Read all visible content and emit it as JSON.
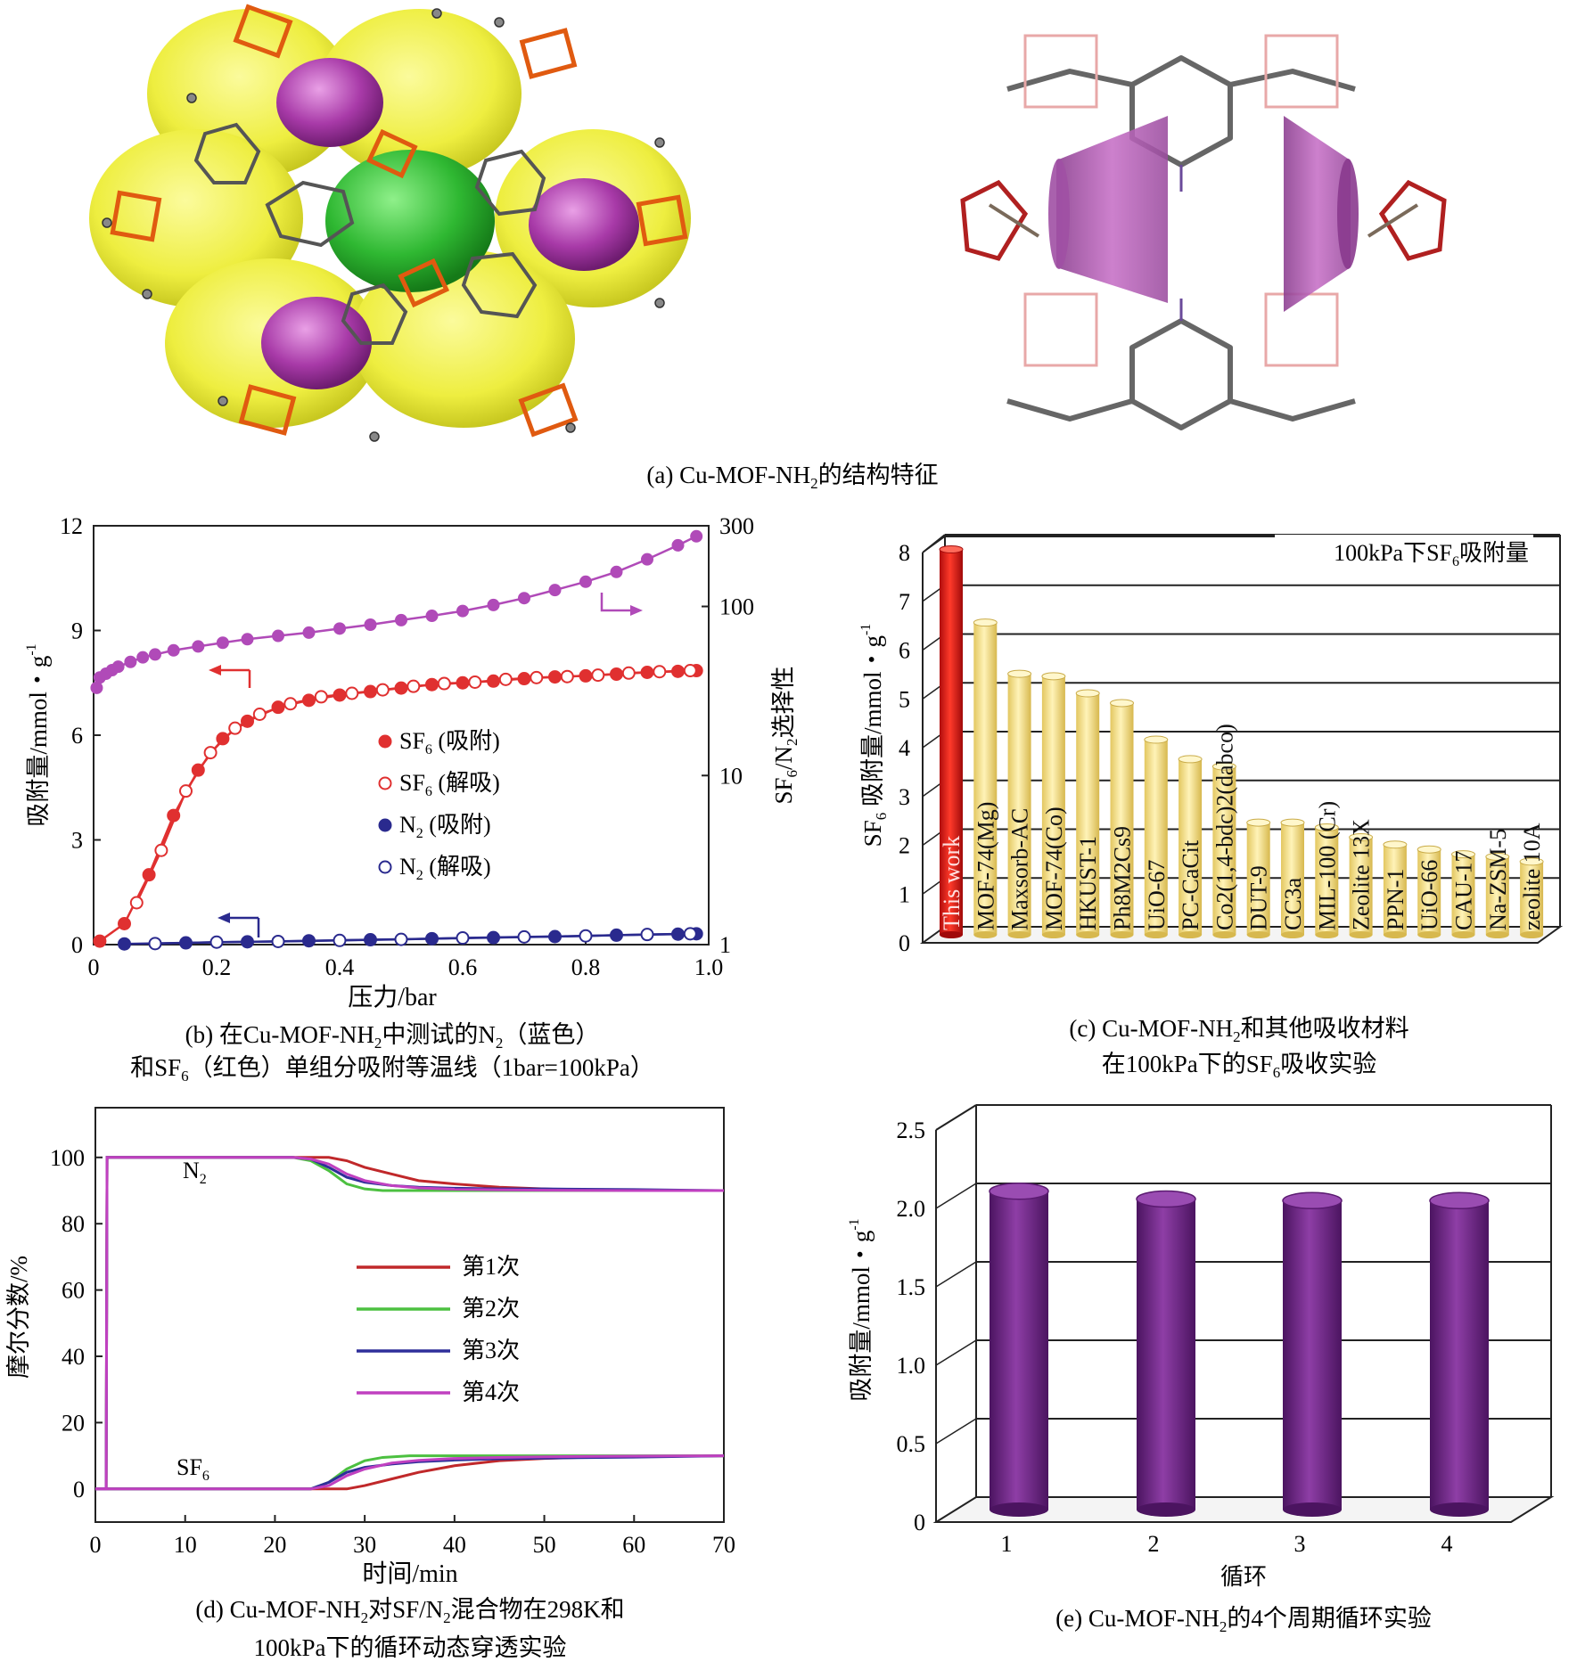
{
  "panel_a": {
    "caption": {
      "prefix": "(a) Cu-MOF-NH",
      "sub": "2",
      "suffix": "的结构特征"
    }
  },
  "chart_data": [
    {
      "id": "b",
      "type": "line",
      "caption_line1": {
        "prefix": "(b) 在Cu-MOF-NH",
        "sub1": "2",
        "mid": "中测试的N",
        "sub2": "2",
        "suffix": "（蓝色）"
      },
      "caption_line2": {
        "prefix": "和SF",
        "sub": "6",
        "suffix": "（红色）单组分吸附等温线（1bar=100kPa）"
      },
      "xlabel": "压力/bar",
      "ylabel": {
        "prefix": "吸附量/mmol・g",
        "sup": "-1"
      },
      "y2label": {
        "prefix": "SF",
        "sub1": "6",
        "mid": "/N",
        "sub2": "2",
        "suffix": "选择性"
      },
      "xlim": [
        0,
        1.0
      ],
      "ylim": [
        0,
        12
      ],
      "y2lim": [
        1,
        300
      ],
      "y2scale": "log",
      "xticks": [
        "0",
        "0.2",
        "0.4",
        "0.6",
        "0.8",
        "1.0"
      ],
      "yticks": [
        "0",
        "3",
        "6",
        "9",
        "12"
      ],
      "y2ticks": [
        "1",
        "10",
        "100",
        "300"
      ],
      "legend": [
        {
          "prefix": "SF",
          "sub": "6",
          "suffix": " (吸附)",
          "color": "#e03030",
          "filled": true
        },
        {
          "prefix": "SF",
          "sub": "6",
          "suffix": " (解吸)",
          "color": "#e03030",
          "filled": false
        },
        {
          "prefix": "N",
          "sub": "2",
          "suffix": " (吸附)",
          "color": "#2a2a8e",
          "filled": true
        },
        {
          "prefix": "N",
          "sub": "2",
          "suffix": " (解吸)",
          "color": "#2a2a8e",
          "filled": false
        }
      ],
      "series": [
        {
          "name": "SF6 (吸附)",
          "axis": "left",
          "color": "#e03030",
          "x": [
            0.01,
            0.05,
            0.09,
            0.13,
            0.17,
            0.21,
            0.25,
            0.3,
            0.35,
            0.4,
            0.45,
            0.5,
            0.55,
            0.6,
            0.65,
            0.7,
            0.75,
            0.8,
            0.85,
            0.9,
            0.95,
            0.98
          ],
          "y": [
            0.1,
            0.6,
            2.0,
            3.7,
            5.0,
            5.9,
            6.4,
            6.8,
            7.0,
            7.15,
            7.25,
            7.35,
            7.45,
            7.5,
            7.55,
            7.62,
            7.67,
            7.7,
            7.75,
            7.8,
            7.83,
            7.85
          ]
        },
        {
          "name": "SF6 (解吸)",
          "axis": "left",
          "color": "#e03030",
          "x": [
            0.07,
            0.11,
            0.15,
            0.19,
            0.23,
            0.27,
            0.32,
            0.37,
            0.42,
            0.47,
            0.52,
            0.57,
            0.62,
            0.67,
            0.72,
            0.77,
            0.82,
            0.87,
            0.92,
            0.97
          ],
          "y": [
            1.2,
            2.7,
            4.4,
            5.5,
            6.2,
            6.6,
            6.9,
            7.1,
            7.2,
            7.3,
            7.4,
            7.48,
            7.52,
            7.6,
            7.65,
            7.68,
            7.72,
            7.78,
            7.82,
            7.85
          ]
        },
        {
          "name": "N2 (吸附)",
          "axis": "left",
          "color": "#2a2a8e",
          "x": [
            0.05,
            0.15,
            0.25,
            0.35,
            0.45,
            0.55,
            0.65,
            0.75,
            0.85,
            0.95,
            0.98
          ],
          "y": [
            0.02,
            0.05,
            0.08,
            0.11,
            0.14,
            0.17,
            0.2,
            0.23,
            0.27,
            0.3,
            0.31
          ]
        },
        {
          "name": "N2 (解吸)",
          "axis": "left",
          "color": "#2a2a8e",
          "x": [
            0.1,
            0.2,
            0.3,
            0.4,
            0.5,
            0.6,
            0.7,
            0.8,
            0.9,
            0.97
          ],
          "y": [
            0.03,
            0.07,
            0.09,
            0.12,
            0.15,
            0.19,
            0.22,
            0.25,
            0.29,
            0.31
          ]
        },
        {
          "name": "SF6/N2选择性",
          "axis": "right",
          "color": "#b04ab8",
          "x": [
            0.005,
            0.01,
            0.02,
            0.03,
            0.04,
            0.06,
            0.08,
            0.1,
            0.13,
            0.17,
            0.21,
            0.25,
            0.3,
            0.35,
            0.4,
            0.45,
            0.5,
            0.55,
            0.6,
            0.65,
            0.7,
            0.75,
            0.8,
            0.85,
            0.9,
            0.95,
            0.98
          ],
          "y": [
            33,
            38,
            40,
            42,
            44,
            47,
            50,
            52,
            55,
            58,
            61,
            64,
            67,
            70,
            74,
            78,
            83,
            88,
            94,
            102,
            112,
            125,
            140,
            160,
            190,
            230,
            260
          ]
        }
      ]
    },
    {
      "id": "c",
      "type": "bar",
      "title": {
        "prefix": "100kPa下SF",
        "sub": "6",
        "suffix": "吸附量"
      },
      "caption_line1": {
        "prefix": "(c) Cu-MOF-NH",
        "sub": "2",
        "suffix": "和其他吸收材料"
      },
      "caption_line2": {
        "prefix": "在100kPa下的SF",
        "sub": "6",
        "suffix": "吸收实验"
      },
      "ylabel": {
        "prefix": "SF",
        "sub": "6",
        "mid": " 吸附量/mmol・g",
        "sup": "-1"
      },
      "ylim": [
        0,
        8
      ],
      "yticks": [
        "0",
        "1",
        "2",
        "3",
        "4",
        "5",
        "6",
        "7",
        "8"
      ],
      "categories": [
        "This work",
        "MOF-74(Mg)",
        "Maxsorb-AC",
        "MOF-74(Co)",
        "HKUST-1",
        "Ph8M2Cs9",
        "UiO-67",
        "PC-CaCit",
        "Co2(1,4-bdc)2(dabco)",
        "DUT-9",
        "CC3a",
        "MIL-100 (Cr)",
        "Zeolite 13X",
        "PPN-1",
        "UiO-66",
        "CAU-17",
        "Na-ZSM-5",
        "zeolite 10A"
      ],
      "values": [
        7.9,
        6.4,
        5.35,
        5.3,
        4.95,
        4.75,
        4.0,
        3.6,
        3.45,
        2.3,
        2.3,
        2.2,
        2.0,
        1.85,
        1.75,
        1.65,
        1.6,
        1.5
      ],
      "colors": {
        "highlight": "#e02020",
        "other": "#fbe79a"
      }
    },
    {
      "id": "d",
      "type": "line",
      "caption_line1": {
        "prefix": "(d) Cu-MOF-NH",
        "sub1": "2",
        "mid": "对SF/N",
        "sub2": "2",
        "suffix": "混合物在298K和"
      },
      "caption_line2": "100kPa下的循环动态穿透实验",
      "xlabel": "时间/min",
      "ylabel": "摩尔分数/%",
      "xlim": [
        0,
        70
      ],
      "ylim": [
        -10,
        115
      ],
      "xticks": [
        "0",
        "10",
        "20",
        "30",
        "40",
        "50",
        "60",
        "70"
      ],
      "yticks": [
        "0",
        "20",
        "40",
        "60",
        "80",
        "100"
      ],
      "annotations": [
        {
          "prefix": "N",
          "sub": "2"
        },
        {
          "prefix": "SF",
          "sub": "6"
        }
      ],
      "legend": [
        "第1次",
        "第2次",
        "第3次",
        "第4次"
      ],
      "series": [
        {
          "name": "第1次",
          "color": "#c0282a",
          "x": [
            0,
            1.2,
            1.3,
            22,
            26,
            28,
            30,
            33,
            36,
            40,
            45,
            50,
            55,
            60,
            70
          ],
          "n2": [
            0,
            0,
            100,
            100,
            100,
            99,
            97,
            95,
            93,
            92,
            91,
            90.5,
            90,
            90,
            90
          ],
          "sf6": [
            0,
            0,
            0,
            0,
            0,
            0,
            1,
            3,
            5,
            7,
            8.5,
            9.2,
            9.6,
            9.8,
            10
          ]
        },
        {
          "name": "第2次",
          "color": "#4cc040",
          "x": [
            0,
            1.2,
            1.3,
            22,
            24,
            26,
            28,
            30,
            32,
            35,
            40,
            50,
            60,
            70
          ],
          "n2": [
            0,
            0,
            100,
            100,
            99,
            96,
            92,
            90.5,
            90,
            90,
            90,
            90,
            90,
            90
          ],
          "sf6": [
            0,
            0,
            0,
            0,
            0,
            2,
            6,
            8.5,
            9.5,
            10,
            10,
            10,
            10,
            10
          ]
        },
        {
          "name": "第3次",
          "color": "#2e2e9a",
          "x": [
            0,
            1.2,
            1.3,
            22,
            24,
            26,
            28,
            30,
            33,
            36,
            40,
            45,
            50,
            60,
            70
          ],
          "n2": [
            0,
            0,
            100,
            100,
            99.5,
            97,
            94,
            92.5,
            91.5,
            91,
            90.7,
            90.5,
            90.5,
            90.3,
            90
          ],
          "sf6": [
            0,
            0,
            0,
            0,
            0,
            2,
            5,
            6.5,
            7.5,
            8.2,
            8.7,
            9.1,
            9.3,
            9.6,
            10
          ]
        },
        {
          "name": "第4次",
          "color": "#c040c0",
          "x": [
            0,
            1.2,
            1.3,
            22,
            24,
            26,
            28,
            30,
            33,
            36,
            40,
            45,
            50,
            60,
            70
          ],
          "n2": [
            0,
            0,
            100,
            100,
            99.5,
            98,
            95,
            93,
            91.5,
            90.8,
            90.4,
            90.2,
            90.1,
            90,
            90
          ],
          "sf6": [
            0,
            0,
            0,
            0,
            0,
            1,
            4,
            6,
            7.8,
            8.6,
            9.2,
            9.5,
            9.7,
            9.9,
            10
          ]
        }
      ]
    },
    {
      "id": "e",
      "type": "bar",
      "caption": {
        "prefix": "(e) Cu-MOF-NH",
        "sub": "2",
        "suffix": "的4个周期循环实验"
      },
      "xlabel": "循环",
      "ylabel": {
        "prefix": "吸附量/mmol・g",
        "sup": "-1"
      },
      "ylim": [
        0,
        2.5
      ],
      "yticks": [
        "0",
        "0.5",
        "1.0",
        "1.5",
        "2.0",
        "2.5"
      ],
      "categories": [
        "1",
        "2",
        "3",
        "4"
      ],
      "values": [
        2.03,
        1.98,
        1.97,
        1.97
      ],
      "color": "#7a2a8e"
    }
  ]
}
